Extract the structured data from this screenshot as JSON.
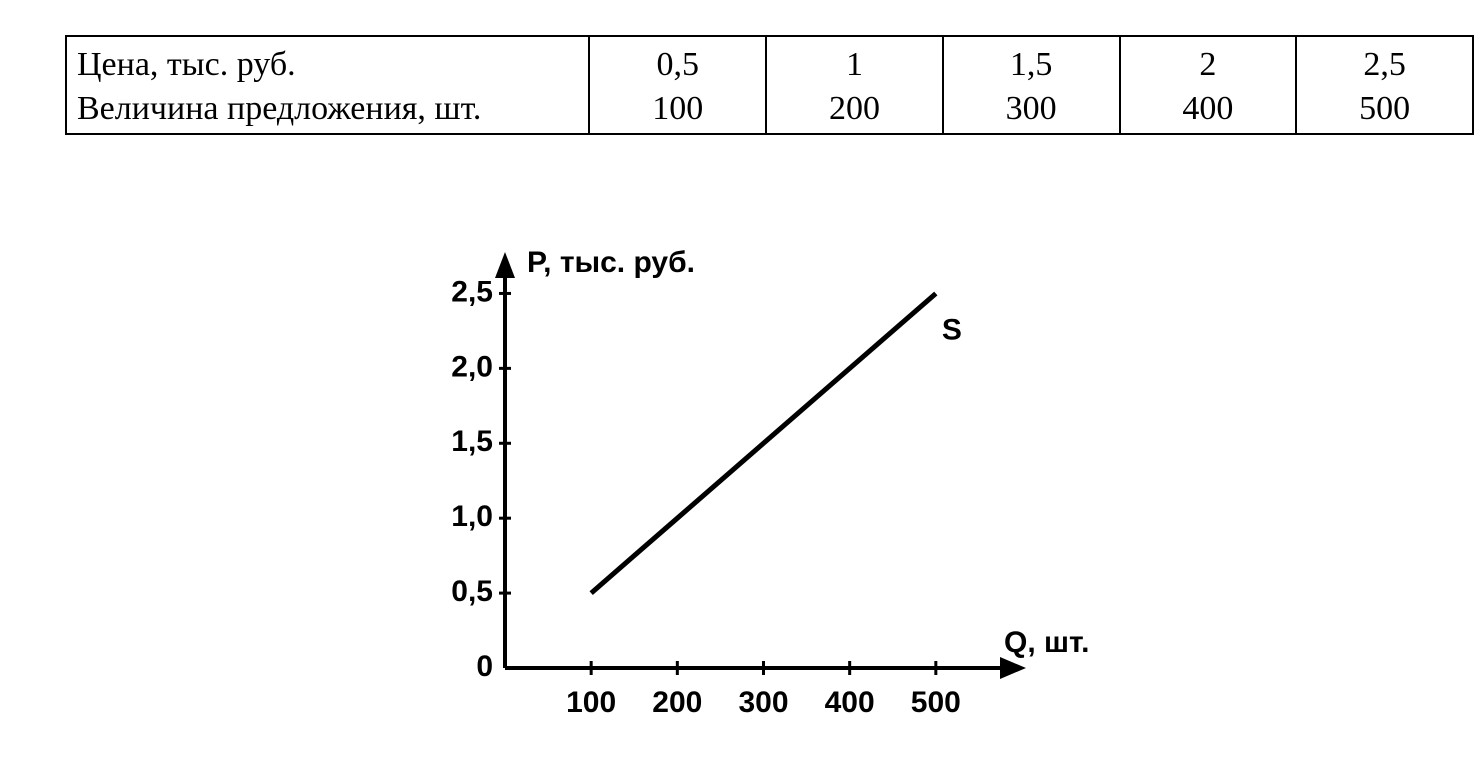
{
  "table": {
    "rows": [
      [
        "Цена, тыс. руб.",
        "0,5",
        "1",
        "1,5",
        "2",
        "2,5"
      ],
      [
        "Величина предложения, шт.",
        "100",
        "200",
        "300",
        "400",
        "500"
      ]
    ]
  },
  "chart_data": {
    "type": "line",
    "x": [
      100,
      200,
      300,
      400,
      500
    ],
    "series": [
      {
        "name": "S",
        "color": "#000000",
        "values": [
          0.5,
          1,
          1.5,
          2,
          2.5
        ]
      }
    ],
    "xlabel": "Q, шт.",
    "ylabel": "P, тыс. руб.",
    "xlim": [
      0,
      600
    ],
    "ylim": [
      0,
      2.75
    ],
    "xticks": [
      100,
      200,
      300,
      400,
      500
    ],
    "yticks": [
      0,
      {
        "value": 0.5,
        "label": "0,5"
      },
      {
        "value": 1,
        "label": "1,0"
      },
      {
        "value": 1.5,
        "label": "1,5"
      },
      {
        "value": 2,
        "label": "2,0"
      },
      {
        "value": 2.5,
        "label": "2,5"
      }
    ]
  }
}
